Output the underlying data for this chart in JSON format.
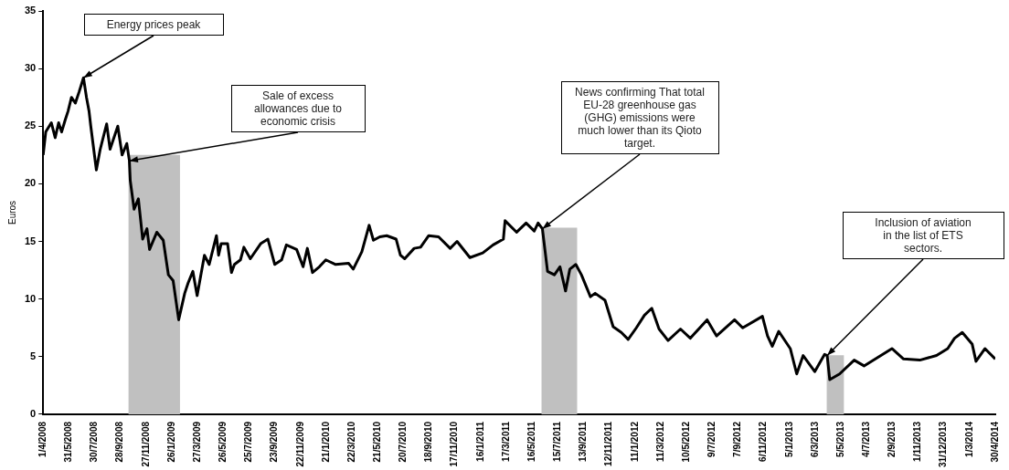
{
  "chart_data": {
    "type": "line",
    "ylabel": "Euros",
    "xlim": [
      "2008-04-01",
      "2014-04-30"
    ],
    "xticks": [
      {
        "value": "2008-04-01",
        "label": "1/4/2008"
      },
      {
        "value": "2008-05-31",
        "label": "31/5/2008"
      },
      {
        "value": "2008-07-30",
        "label": "30/7/2008"
      },
      {
        "value": "2008-09-28",
        "label": "28/9/2008"
      },
      {
        "value": "2008-11-27",
        "label": "27/11/2008"
      },
      {
        "value": "2009-01-26",
        "label": "26/1/2009"
      },
      {
        "value": "2009-03-27",
        "label": "27/3/2009"
      },
      {
        "value": "2009-05-26",
        "label": "26/5/2009"
      },
      {
        "value": "2009-07-25",
        "label": "25/7/2009"
      },
      {
        "value": "2009-09-23",
        "label": "23/9/2009"
      },
      {
        "value": "2009-11-22",
        "label": "22/11/2009"
      },
      {
        "value": "2010-01-21",
        "label": "21/1/2010"
      },
      {
        "value": "2010-03-22",
        "label": "22/3/2010"
      },
      {
        "value": "2010-05-21",
        "label": "21/5/2010"
      },
      {
        "value": "2010-07-20",
        "label": "20/7/2010"
      },
      {
        "value": "2010-09-18",
        "label": "18/9/2010"
      },
      {
        "value": "2010-11-17",
        "label": "17/11/2010"
      },
      {
        "value": "2011-01-16",
        "label": "16/1/2011"
      },
      {
        "value": "2011-03-17",
        "label": "17/3/2011"
      },
      {
        "value": "2011-05-16",
        "label": "16/5/2011"
      },
      {
        "value": "2011-07-15",
        "label": "15/7/2011"
      },
      {
        "value": "2011-09-13",
        "label": "13/9/2011"
      },
      {
        "value": "2011-11-12",
        "label": "12/11/2011"
      },
      {
        "value": "2012-01-11",
        "label": "11/1/2012"
      },
      {
        "value": "2012-03-11",
        "label": "11/3/2012"
      },
      {
        "value": "2012-05-10",
        "label": "10/5/2012"
      },
      {
        "value": "2012-07-09",
        "label": "9/7/2012"
      },
      {
        "value": "2012-09-07",
        "label": "7/9/2012"
      },
      {
        "value": "2012-11-06",
        "label": "6/11/2012"
      },
      {
        "value": "2013-01-05",
        "label": "5/1/2013"
      },
      {
        "value": "2013-03-06",
        "label": "6/3/2013"
      },
      {
        "value": "2013-05-05",
        "label": "5/5/2013"
      },
      {
        "value": "2013-07-04",
        "label": "4/7/2013"
      },
      {
        "value": "2013-09-02",
        "label": "2/9/2013"
      },
      {
        "value": "2013-11-01",
        "label": "1/11/2013"
      },
      {
        "value": "2013-12-31",
        "label": "31/12/2013"
      },
      {
        "value": "2014-03-01",
        "label": "1/3/2014"
      },
      {
        "value": "2014-04-30",
        "label": "30/4/2014"
      }
    ],
    "ylim": [
      0,
      35
    ],
    "yticks": [
      0,
      5,
      10,
      15,
      20,
      25,
      30,
      35
    ],
    "x": [
      "2008-04-01",
      "2008-04-07",
      "2008-04-20",
      "2008-04-29",
      "2008-05-07",
      "2008-05-14",
      "2008-05-22",
      "2008-05-29",
      "2008-06-06",
      "2008-06-15",
      "2008-06-24",
      "2008-07-04",
      "2008-07-11",
      "2008-07-17",
      "2008-07-21",
      "2008-08-03",
      "2008-08-12",
      "2008-08-27",
      "2008-09-04",
      "2008-09-22",
      "2008-10-02",
      "2008-10-13",
      "2008-10-19",
      "2008-10-21",
      "2008-10-30",
      "2008-11-09",
      "2008-11-19",
      "2008-11-29",
      "2008-12-05",
      "2008-12-22",
      "2009-01-06",
      "2009-01-18",
      "2009-01-29",
      "2009-02-11",
      "2009-02-25",
      "2009-03-05",
      "2009-03-16",
      "2009-03-26",
      "2009-04-12",
      "2009-04-23",
      "2009-05-10",
      "2009-05-15",
      "2009-05-21",
      "2009-06-05",
      "2009-06-14",
      "2009-06-21",
      "2009-07-05",
      "2009-07-13",
      "2009-07-28",
      "2009-08-21",
      "2009-09-07",
      "2009-09-23",
      "2009-10-09",
      "2009-10-20",
      "2009-11-13",
      "2009-11-28",
      "2009-12-08",
      "2009-12-20",
      "2010-01-05",
      "2010-01-20",
      "2010-02-12",
      "2010-03-14",
      "2010-03-25",
      "2010-04-14",
      "2010-05-01",
      "2010-05-11",
      "2010-05-26",
      "2010-06-11",
      "2010-07-03",
      "2010-07-13",
      "2010-07-23",
      "2010-08-14",
      "2010-08-29",
      "2010-09-17",
      "2010-10-10",
      "2010-11-06",
      "2010-11-22",
      "2010-12-22",
      "2011-01-21",
      "2011-02-14",
      "2011-03-10",
      "2011-03-14",
      "2011-04-10",
      "2011-05-02",
      "2011-05-21",
      "2011-05-30",
      "2011-06-09",
      "2011-06-21",
      "2011-07-07",
      "2011-07-20",
      "2011-08-02",
      "2011-08-12",
      "2011-08-26",
      "2011-09-08",
      "2011-09-29",
      "2011-10-10",
      "2011-11-02",
      "2011-11-21",
      "2011-12-10",
      "2011-12-26",
      "2012-01-14",
      "2012-02-02",
      "2012-02-19",
      "2012-03-07",
      "2012-03-28",
      "2012-04-26",
      "2012-05-19",
      "2012-06-27",
      "2012-07-19",
      "2012-08-30",
      "2012-09-18",
      "2012-11-03",
      "2012-11-15",
      "2012-11-26",
      "2012-12-11",
      "2013-01-07",
      "2013-01-22",
      "2013-02-06",
      "2013-03-05",
      "2013-03-28",
      "2013-04-03",
      "2013-04-09",
      "2013-05-02",
      "2013-06-05",
      "2013-06-28",
      "2013-09-01",
      "2013-09-28",
      "2013-11-05",
      "2013-12-14",
      "2014-01-09",
      "2014-01-25",
      "2014-02-12",
      "2014-03-07",
      "2014-03-16",
      "2014-04-06",
      "2014-04-30"
    ],
    "series": [
      {
        "color": "#000000",
        "values": [
          22.5,
          24.5,
          25.3,
          24.0,
          25.3,
          24.5,
          25.5,
          26.3,
          27.5,
          27.0,
          28.0,
          29.2,
          27.5,
          26.3,
          25.0,
          21.2,
          23.0,
          25.2,
          23.0,
          25.0,
          22.5,
          23.5,
          22.0,
          20.3,
          17.8,
          18.7,
          15.2,
          16.1,
          14.3,
          15.8,
          15.1,
          12.1,
          11.6,
          8.2,
          10.5,
          11.4,
          12.4,
          10.3,
          13.8,
          13.0,
          15.5,
          13.8,
          14.8,
          14.8,
          12.3,
          13.0,
          13.4,
          14.5,
          13.5,
          14.8,
          15.2,
          13.0,
          13.4,
          14.7,
          14.3,
          12.8,
          14.4,
          12.3,
          12.8,
          13.4,
          13.0,
          13.1,
          12.6,
          14.1,
          16.4,
          15.1,
          15.4,
          15.5,
          15.2,
          13.8,
          13.5,
          14.4,
          14.5,
          15.5,
          15.4,
          14.4,
          15.0,
          13.6,
          14.0,
          14.7,
          15.2,
          16.8,
          15.8,
          16.6,
          15.9,
          16.6,
          16.1,
          12.4,
          12.1,
          12.8,
          10.7,
          12.6,
          13.0,
          12.1,
          10.2,
          10.5,
          9.9,
          7.6,
          7.1,
          6.5,
          7.5,
          8.6,
          9.2,
          7.4,
          6.4,
          7.4,
          6.6,
          8.2,
          6.8,
          8.2,
          7.5,
          8.5,
          6.8,
          5.9,
          7.2,
          5.7,
          3.5,
          5.1,
          3.7,
          5.2,
          5.1,
          3.0,
          3.5,
          4.7,
          4.2,
          5.7,
          4.8,
          4.7,
          5.1,
          5.7,
          6.6,
          7.1,
          6.1,
          4.6,
          5.7,
          4.8
        ]
      }
    ],
    "bands": [
      {
        "axis": "x",
        "from": "2008-10-17",
        "to": "2009-02-14",
        "color": "#c0c0c0"
      },
      {
        "axis": "x",
        "from": "2011-06-07",
        "to": "2011-08-29",
        "color": "#c0c0c0"
      },
      {
        "axis": "x",
        "from": "2013-04-02",
        "to": "2013-05-12",
        "color": "#c0c0c0"
      }
    ],
    "annotations": [
      {
        "text": "Energy prices peak",
        "x": "2008-07-04",
        "y": 29.2
      },
      {
        "text": "Sale of excess allowances due to economic crisis",
        "x": "2008-10-19",
        "y": 22.0
      },
      {
        "text": "News confirming That total EU-28 greenhouse gas (GHG) emissions were much lower than its Qioto target.",
        "x": "2011-06-09",
        "y": 16.1
      },
      {
        "text": "Inclusion of aviation in the list of ETS sectors.",
        "x": "2013-04-03",
        "y": 5.1
      }
    ]
  }
}
